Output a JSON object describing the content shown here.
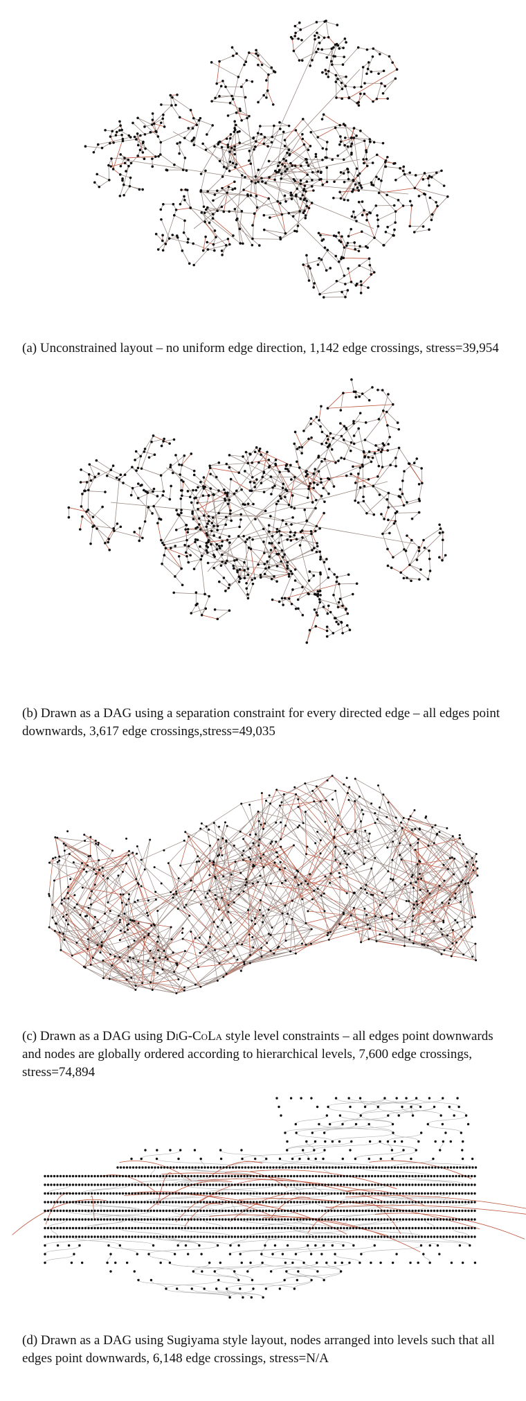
{
  "figure": {
    "panels": [
      {
        "id": "a",
        "caption_label": "(a)",
        "caption_text": "Unconstrained layout – no uniform edge direction, 1,142 edge crossings, stress=39,954",
        "edge_crossings": 1142,
        "stress": "39,954"
      },
      {
        "id": "b",
        "caption_label": "(b)",
        "caption_text": "Drawn as a DAG using a separation constraint for every directed edge – all edges point downwards, 3,617 edge crossings,stress=49,035",
        "edge_crossings": 3617,
        "stress": "49,035"
      },
      {
        "id": "c",
        "caption_label": "(c)",
        "caption_pre": "Drawn as a DAG using ",
        "caption_method": "DiG-CoLa",
        "caption_post": " style level constraints – all edges point downwards and nodes are globally ordered according to hierarchical levels, 7,600 edge crossings, stress=74,894",
        "edge_crossings": 7600,
        "stress": "74,894"
      },
      {
        "id": "d",
        "caption_label": "(d)",
        "caption_text": "Drawn as a DAG using Sugiyama style layout, nodes arranged into levels such that all edges point downwards, 6,148 edge crossings, stress=N/A",
        "edge_crossings": 6148,
        "stress": "N/A"
      }
    ],
    "colors": {
      "node": "#111111",
      "edge": "#9a8a84",
      "edge_highlight": "#c0553e",
      "sugiyama_edge": "#b9b9b9"
    }
  }
}
